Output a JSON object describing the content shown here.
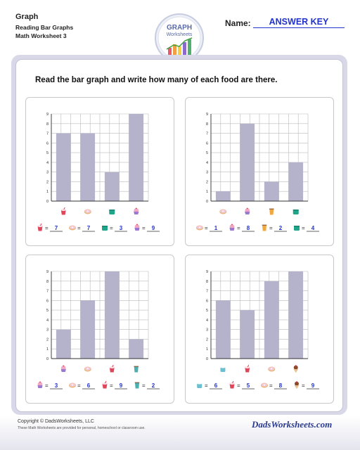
{
  "header": {
    "title": "Graph",
    "subtitle1": "Reading Bar Graphs",
    "subtitle2": "Math Worksheet 3",
    "logo_line1": "GRAPH",
    "logo_line2": "Worksheets",
    "name_label": "Name:",
    "name_value": "ANSWER KEY"
  },
  "instructions": "Read the bar graph and write how many of each food are there.",
  "chart_data": [
    {
      "type": "bar",
      "categories": [
        "milkshake",
        "donut",
        "coffee cup",
        "cupcake"
      ],
      "values": [
        7,
        7,
        3,
        9
      ],
      "ylim": [
        0,
        9
      ],
      "yticks": [
        "0",
        "1",
        "2",
        "3",
        "4",
        "5",
        "6",
        "7",
        "8",
        "9"
      ],
      "answers": [
        "7",
        "7",
        "3",
        "9"
      ],
      "icons": [
        "milkshake-icon",
        "donut-icon",
        "coffee-cup-icon",
        "cupcake-icon"
      ],
      "bar_color": "#b5b3cc"
    },
    {
      "type": "bar",
      "categories": [
        "donut",
        "cupcake",
        "iced drink",
        "coffee cup"
      ],
      "values": [
        1,
        8,
        2,
        4
      ],
      "ylim": [
        0,
        9
      ],
      "yticks": [
        "0",
        "1",
        "2",
        "3",
        "4",
        "5",
        "6",
        "7",
        "8",
        "9"
      ],
      "answers": [
        "1",
        "8",
        "2",
        "4"
      ],
      "icons": [
        "donut-icon",
        "cupcake-icon",
        "iced-drink-icon",
        "coffee-cup-icon"
      ],
      "bar_color": "#b5b3cc"
    },
    {
      "type": "bar",
      "categories": [
        "cupcake",
        "donut",
        "milkshake",
        "iced coffee"
      ],
      "values": [
        3,
        6,
        9,
        2
      ],
      "ylim": [
        0,
        9
      ],
      "yticks": [
        "0",
        "1",
        "2",
        "3",
        "4",
        "5",
        "6",
        "7",
        "8",
        "9"
      ],
      "answers": [
        "3",
        "6",
        "9",
        "2"
      ],
      "icons": [
        "cupcake-icon",
        "donut-icon",
        "milkshake-icon",
        "iced-coffee-icon"
      ],
      "bar_color": "#b5b3cc"
    },
    {
      "type": "bar",
      "categories": [
        "hot cocoa",
        "milkshake",
        "donut",
        "sundae"
      ],
      "values": [
        6,
        5,
        8,
        9
      ],
      "ylim": [
        0,
        9
      ],
      "yticks": [
        "0",
        "1",
        "2",
        "3",
        "4",
        "5",
        "6",
        "7",
        "8",
        "9"
      ],
      "answers": [
        "6",
        "5",
        "8",
        "9"
      ],
      "icons": [
        "hot-cocoa-icon",
        "milkshake-icon",
        "donut-icon",
        "sundae-icon"
      ],
      "bar_color": "#b5b3cc"
    }
  ],
  "footer": {
    "copyright": "Copyright © DadsWorksheets, LLC",
    "note": "These Math Worksheets are provided for personal, homeschool or classroom use.",
    "brand": "DadsWorksheets.com"
  },
  "colors": {
    "accent": "#2233cc",
    "frame": "#d8d8e8",
    "bar": "#b5b3cc"
  }
}
